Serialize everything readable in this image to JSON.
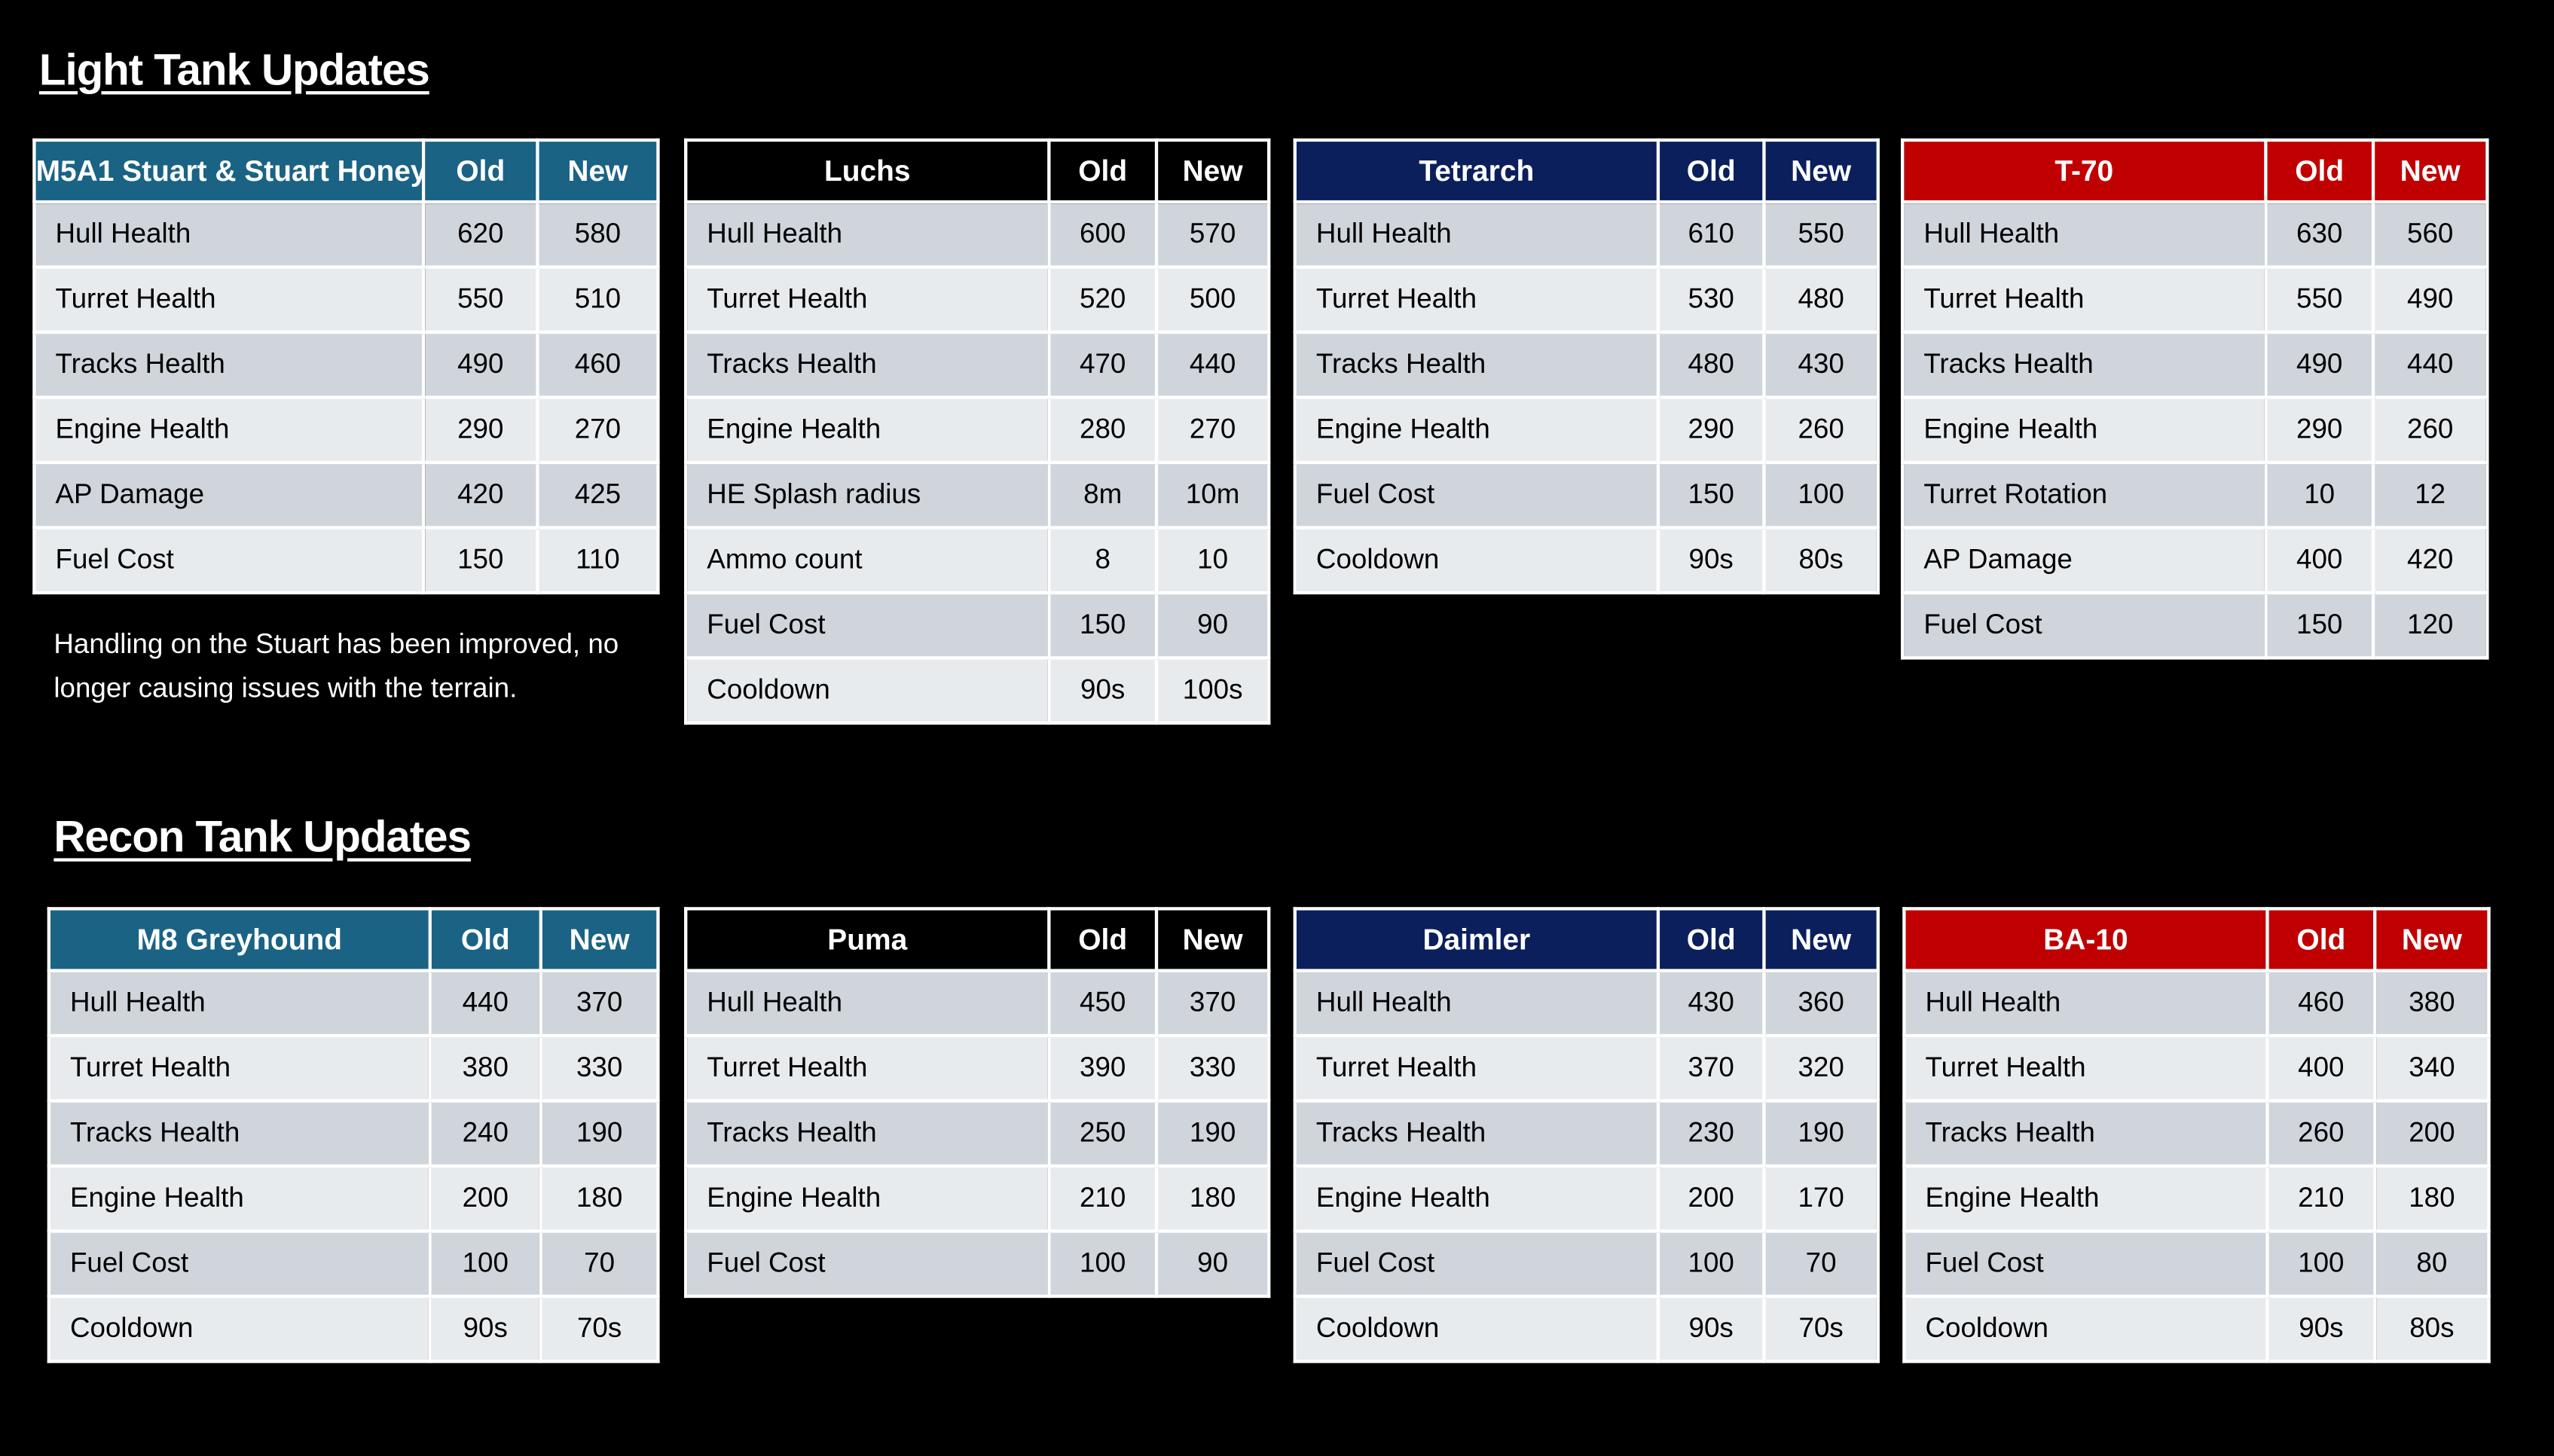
{
  "sections": [
    {
      "title": "Light Tank Updates",
      "tables": [
        {
          "header": [
            "M5A1 Stuart & Stuart Honey",
            "Old",
            "New"
          ],
          "rows": [
            [
              "Hull Health",
              "620",
              "580"
            ],
            [
              "Turret Health",
              "550",
              "510"
            ],
            [
              "Tracks Health",
              "490",
              "460"
            ],
            [
              "Engine Health",
              "290",
              "270"
            ],
            [
              "AP Damage",
              "420",
              "425"
            ],
            [
              "Fuel Cost",
              "150",
              "110"
            ]
          ]
        },
        {
          "header": [
            "Luchs",
            "Old",
            "New"
          ],
          "rows": [
            [
              "Hull Health",
              "600",
              "570"
            ],
            [
              "Turret Health",
              "520",
              "500"
            ],
            [
              "Tracks Health",
              "470",
              "440"
            ],
            [
              "Engine Health",
              "280",
              "270"
            ],
            [
              "HE Splash radius",
              "8m",
              "10m"
            ],
            [
              "Ammo count",
              "8",
              "10"
            ],
            [
              "Fuel Cost",
              "150",
              "90"
            ],
            [
              "Cooldown",
              "90s",
              "100s"
            ]
          ]
        },
        {
          "header": [
            "Tetrarch",
            "Old",
            "New"
          ],
          "rows": [
            [
              "Hull Health",
              "610",
              "550"
            ],
            [
              "Turret Health",
              "530",
              "480"
            ],
            [
              "Tracks Health",
              "480",
              "430"
            ],
            [
              "Engine Health",
              "290",
              "260"
            ],
            [
              "Fuel Cost",
              "150",
              "100"
            ],
            [
              "Cooldown",
              "90s",
              "80s"
            ]
          ]
        },
        {
          "header": [
            "T-70",
            "Old",
            "New"
          ],
          "rows": [
            [
              "Hull Health",
              "630",
              "560"
            ],
            [
              "Turret Health",
              "550",
              "490"
            ],
            [
              "Tracks Health",
              "490",
              "440"
            ],
            [
              "Engine Health",
              "290",
              "260"
            ],
            [
              "Turret Rotation",
              "10",
              "12"
            ],
            [
              "AP Damage",
              "400",
              "420"
            ],
            [
              "Fuel Cost",
              "150",
              "120"
            ]
          ]
        }
      ],
      "note": "Handling on the Stuart has been improved, no longer causing issues with the terrain."
    },
    {
      "title": "Recon Tank Updates",
      "tables": [
        {
          "header": [
            "M8 Greyhound",
            "Old",
            "New"
          ],
          "rows": [
            [
              "Hull Health",
              "440",
              "370"
            ],
            [
              "Turret Health",
              "380",
              "330"
            ],
            [
              "Tracks Health",
              "240",
              "190"
            ],
            [
              "Engine Health",
              "200",
              "180"
            ],
            [
              "Fuel Cost",
              "100",
              "70"
            ],
            [
              "Cooldown",
              "90s",
              "70s"
            ]
          ]
        },
        {
          "header": [
            "Puma",
            "Old",
            "New"
          ],
          "rows": [
            [
              "Hull Health",
              "450",
              "370"
            ],
            [
              "Turret Health",
              "390",
              "330"
            ],
            [
              "Tracks Health",
              "250",
              "190"
            ],
            [
              "Engine Health",
              "210",
              "180"
            ],
            [
              "Fuel Cost",
              "100",
              "90"
            ]
          ]
        },
        {
          "header": [
            "Daimler",
            "Old",
            "New"
          ],
          "rows": [
            [
              "Hull Health",
              "430",
              "360"
            ],
            [
              "Turret Health",
              "370",
              "320"
            ],
            [
              "Tracks Health",
              "230",
              "190"
            ],
            [
              "Engine Health",
              "200",
              "170"
            ],
            [
              "Fuel Cost",
              "100",
              "70"
            ],
            [
              "Cooldown",
              "90s",
              "70s"
            ]
          ]
        },
        {
          "header": [
            "BA-10",
            "Old",
            "New"
          ],
          "rows": [
            [
              "Hull Health",
              "460",
              "380"
            ],
            [
              "Turret Health",
              "400",
              "340"
            ],
            [
              "Tracks Health",
              "260",
              "200"
            ],
            [
              "Engine Health",
              "210",
              "180"
            ],
            [
              "Fuel Cost",
              "100",
              "80"
            ],
            [
              "Cooldown",
              "90s",
              "80s"
            ]
          ]
        }
      ]
    }
  ]
}
